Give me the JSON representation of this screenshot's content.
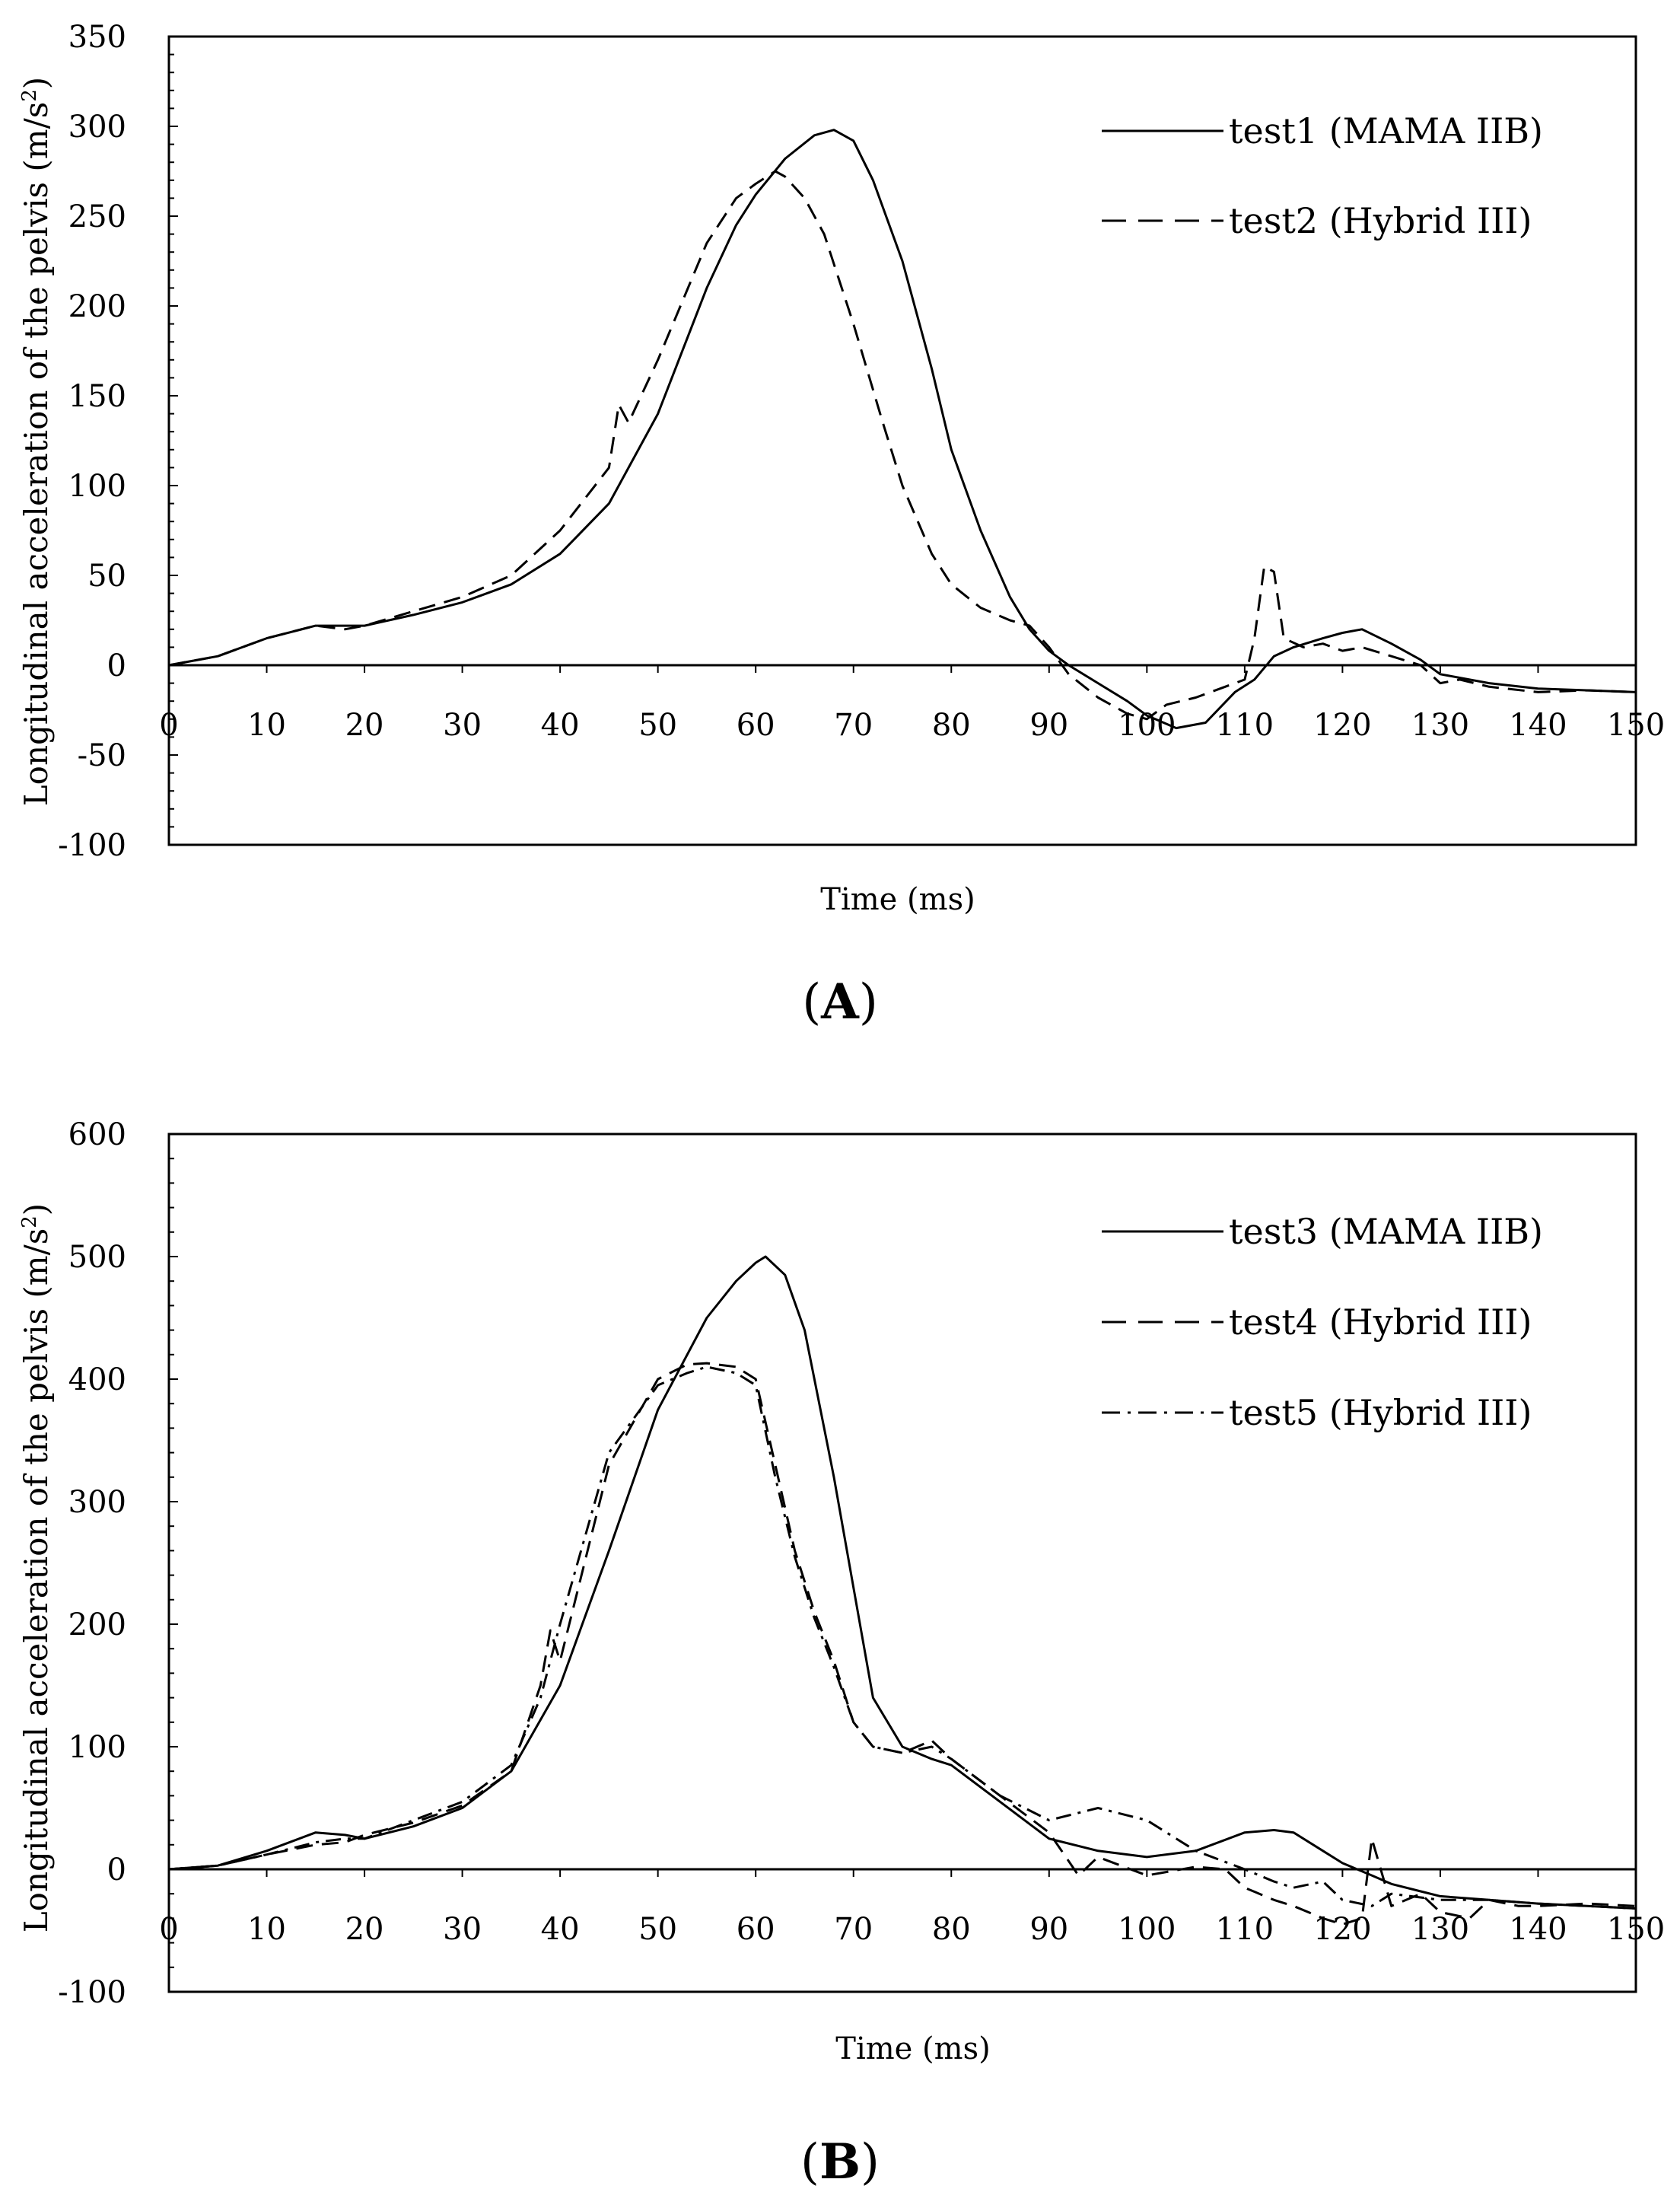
{
  "chart_data": [
    {
      "type": "line",
      "panel_label": "A",
      "xlabel": "Time (ms)",
      "ylabel": "Longitudinal acceleration of the pelvis (m/s",
      "ylabel_sup": "2",
      "ylabel_end": ")",
      "xlim": [
        0,
        150
      ],
      "ylim": [
        -100,
        350
      ],
      "xticks": [
        0,
        10,
        20,
        30,
        40,
        50,
        60,
        70,
        80,
        90,
        100,
        110,
        120,
        130,
        140,
        150
      ],
      "xtick_labels": [
        "0",
        "10",
        "20",
        "30",
        "40",
        "50",
        "60",
        "70",
        "80",
        "90",
        "100",
        "110",
        "120",
        "130",
        "140",
        "150"
      ],
      "yticks": [
        -100,
        -50,
        0,
        50,
        100,
        150,
        200,
        250,
        300,
        350
      ],
      "ytick_labels": [
        "-100",
        "-50",
        "0",
        "50",
        "100",
        "150",
        "200",
        "250",
        "300",
        "350"
      ],
      "legend_position": "top-right",
      "series": [
        {
          "name": "test1 (MAMA IIB)",
          "style": "solid",
          "x": [
            0,
            5,
            10,
            15,
            18,
            20,
            25,
            30,
            35,
            40,
            45,
            50,
            55,
            58,
            60,
            63,
            66,
            68,
            70,
            72,
            75,
            78,
            80,
            83,
            86,
            88,
            90,
            92,
            95,
            98,
            100,
            103,
            106,
            109,
            111,
            113,
            115,
            118,
            120,
            122,
            125,
            128,
            130,
            135,
            140,
            145,
            150
          ],
          "y": [
            0,
            5,
            15,
            22,
            22,
            22,
            28,
            35,
            45,
            62,
            90,
            140,
            210,
            245,
            262,
            282,
            295,
            298,
            292,
            270,
            225,
            165,
            120,
            75,
            38,
            20,
            8,
            0,
            -10,
            -20,
            -28,
            -35,
            -32,
            -15,
            -8,
            5,
            10,
            15,
            18,
            20,
            12,
            3,
            -5,
            -10,
            -13,
            -14,
            -15
          ]
        },
        {
          "name": "test2 (Hybrid III)",
          "style": "dashed",
          "x": [
            0,
            5,
            10,
            15,
            18,
            20,
            25,
            30,
            35,
            40,
            45,
            46,
            47,
            50,
            55,
            58,
            60,
            62,
            63,
            65,
            67,
            70,
            73,
            75,
            78,
            80,
            83,
            86,
            88,
            90,
            92,
            95,
            98,
            100,
            102,
            105,
            108,
            110,
            111,
            112,
            113,
            114,
            116,
            118,
            120,
            122,
            125,
            128,
            130,
            132,
            135,
            140,
            145,
            150
          ],
          "y": [
            0,
            5,
            15,
            22,
            20,
            22,
            30,
            38,
            50,
            75,
            110,
            145,
            135,
            170,
            235,
            260,
            268,
            275,
            272,
            260,
            240,
            190,
            135,
            100,
            62,
            45,
            32,
            25,
            22,
            10,
            -5,
            -18,
            -27,
            -30,
            -22,
            -18,
            -12,
            -8,
            15,
            55,
            52,
            15,
            10,
            12,
            8,
            10,
            5,
            0,
            -10,
            -8,
            -12,
            -15,
            -14,
            -15
          ]
        }
      ]
    },
    {
      "type": "line",
      "panel_label": "B",
      "xlabel": "Time (ms)",
      "ylabel": "Longitudinal acceleration of the pelvis (m/s",
      "ylabel_sup": "2",
      "ylabel_end": ")",
      "xlim": [
        0,
        150
      ],
      "ylim": [
        -100,
        600
      ],
      "xticks": [
        0,
        10,
        20,
        30,
        40,
        50,
        60,
        70,
        80,
        90,
        100,
        110,
        120,
        130,
        140,
        150
      ],
      "xtick_labels": [
        "0",
        "10",
        "20",
        "30",
        "40",
        "50",
        "60",
        "70",
        "80",
        "90",
        "100",
        "110",
        "120",
        "130",
        "140",
        "150"
      ],
      "yticks": [
        -100,
        0,
        100,
        200,
        300,
        400,
        500,
        600
      ],
      "ytick_labels": [
        "-100",
        "0",
        "100",
        "200",
        "300",
        "400",
        "500",
        "600"
      ],
      "legend_position": "top-right",
      "series": [
        {
          "name": "test3 (MAMA IIB)",
          "style": "solid",
          "x": [
            0,
            5,
            10,
            15,
            18,
            20,
            25,
            30,
            35,
            40,
            45,
            50,
            55,
            58,
            60,
            61,
            63,
            65,
            68,
            70,
            72,
            75,
            78,
            80,
            85,
            90,
            95,
            100,
            105,
            110,
            113,
            115,
            118,
            120,
            123,
            125,
            128,
            130,
            135,
            140,
            145,
            150
          ],
          "y": [
            0,
            3,
            15,
            30,
            28,
            25,
            35,
            50,
            80,
            150,
            260,
            375,
            450,
            480,
            495,
            500,
            485,
            440,
            320,
            230,
            140,
            100,
            90,
            85,
            55,
            25,
            15,
            10,
            15,
            30,
            32,
            30,
            15,
            5,
            -5,
            -12,
            -18,
            -22,
            -25,
            -28,
            -30,
            -32
          ]
        },
        {
          "name": "test4 (Hybrid III)",
          "style": "dashed",
          "x": [
            0,
            5,
            10,
            15,
            18,
            20,
            25,
            30,
            35,
            38,
            39,
            40,
            45,
            50,
            53,
            55,
            58,
            60,
            62,
            64,
            66,
            68,
            70,
            72,
            75,
            78,
            80,
            85,
            90,
            93,
            95,
            100,
            105,
            108,
            110,
            113,
            115,
            118,
            120,
            122,
            123,
            125,
            128,
            130,
            133,
            135,
            138,
            140,
            145,
            150
          ],
          "y": [
            0,
            3,
            12,
            20,
            22,
            28,
            38,
            52,
            80,
            150,
            195,
            170,
            330,
            400,
            412,
            413,
            410,
            400,
            330,
            260,
            210,
            170,
            120,
            100,
            95,
            105,
            90,
            60,
            30,
            -5,
            10,
            -5,
            2,
            0,
            -15,
            -25,
            -30,
            -40,
            -45,
            -40,
            25,
            -30,
            -20,
            -35,
            -40,
            -25,
            -30,
            -30,
            -28,
            -30
          ]
        },
        {
          "name": "test5 (Hybrid III)",
          "style": "dashdot",
          "x": [
            0,
            5,
            10,
            15,
            18,
            20,
            25,
            30,
            35,
            38,
            40,
            45,
            50,
            53,
            55,
            58,
            60,
            62,
            64,
            66,
            68,
            70,
            72,
            75,
            78,
            80,
            85,
            90,
            95,
            100,
            105,
            110,
            113,
            115,
            118,
            120,
            123,
            125,
            130,
            135,
            140,
            145,
            150
          ],
          "y": [
            0,
            3,
            12,
            22,
            25,
            25,
            40,
            55,
            85,
            140,
            200,
            340,
            395,
            405,
            410,
            405,
            395,
            320,
            255,
            205,
            165,
            120,
            100,
            95,
            100,
            90,
            60,
            40,
            50,
            40,
            15,
            0,
            -10,
            -15,
            -10,
            -25,
            -30,
            -20,
            -25,
            -25,
            -28,
            -30,
            -32
          ]
        }
      ]
    }
  ]
}
